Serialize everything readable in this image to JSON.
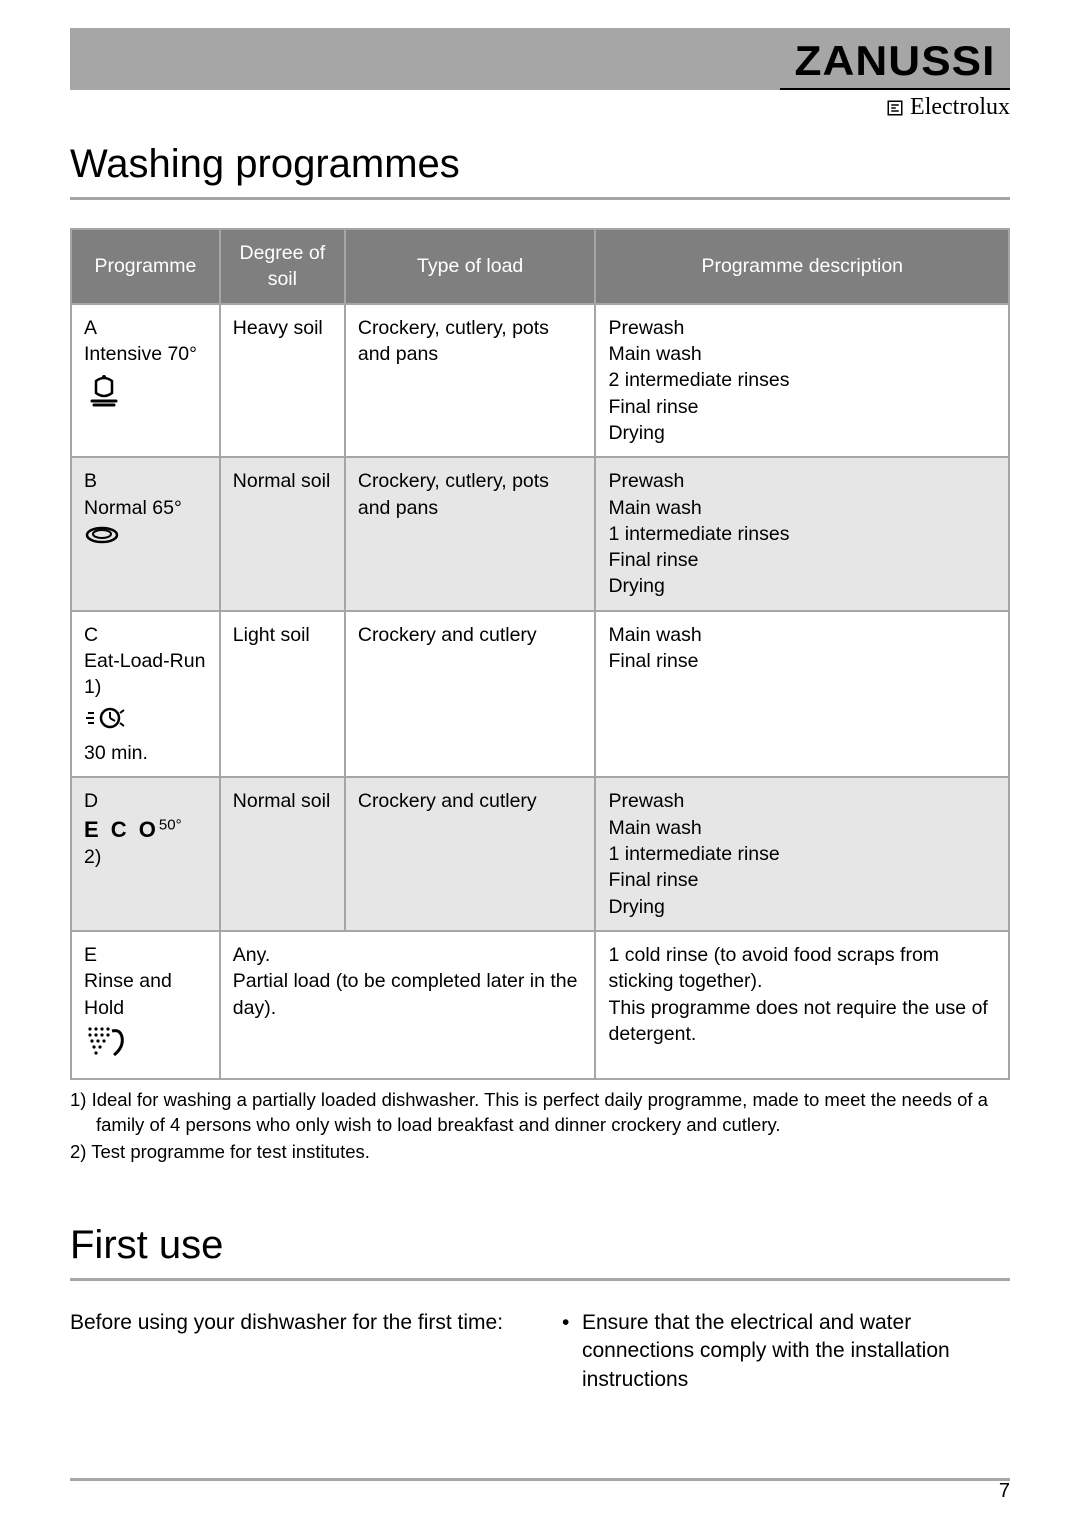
{
  "brand": {
    "primary": "ZANUSSI",
    "secondary": "Electrolux"
  },
  "sections": {
    "washing_title": "Washing programmes",
    "first_use_title": "First use"
  },
  "table": {
    "headers": {
      "programme": "Programme",
      "soil": "Degree of soil",
      "load": "Type of load",
      "desc": "Programme description"
    },
    "rows": [
      {
        "letter": "A",
        "name": "Intensive 70°",
        "sub": "",
        "soil": "Heavy soil",
        "load": "Crockery, cutlery, pots and pans",
        "desc": "Prewash\nMain wash\n2 intermediate rinses\nFinal rinse\nDrying"
      },
      {
        "letter": "B",
        "name": "Normal 65°",
        "sub": "",
        "soil": "Normal soil",
        "load": "Crockery, cutlery, pots and pans",
        "desc": "Prewash\nMain wash\n1 intermediate rinses\nFinal rinse\nDrying"
      },
      {
        "letter": "C",
        "name": "Eat-Load-Run",
        "sub_top": "1)",
        "sub_bottom": "30 min.",
        "soil": "Light soil",
        "load": "Crockery and cutlery",
        "desc": "Main wash\nFinal rinse"
      },
      {
        "letter": "D",
        "name_eco": "E C O",
        "name_eco_deg": "50°",
        "sub": "2)",
        "soil": "Normal soil",
        "load": "Crockery and cutlery",
        "desc": "Prewash\nMain wash\n1 intermediate rinse\nFinal rinse\nDrying"
      },
      {
        "letter": "E",
        "name": "Rinse and Hold",
        "sub": "",
        "soil_load": "Any.\nPartial load (to be completed later in the day).",
        "desc": "1 cold rinse (to avoid food scraps from sticking together).\nThis programme does not require the use of detergent."
      }
    ]
  },
  "footnotes": {
    "f1": "1) Ideal for washing a partially loaded dishwasher. This is perfect daily programme, made to meet the needs of a family of 4 persons who only wish to load breakfast and dinner crockery and cutlery.",
    "f2": "2) Test programme for test institutes."
  },
  "first_use": {
    "left": "Before using your dishwasher for the first time:",
    "right_bullet": "Ensure that the electrical and water connections comply with the installation instructions"
  },
  "page_number": "7",
  "colors": {
    "grey_bar": "#a6a6a6",
    "header_bg": "#7f7f7f",
    "alt_row": "#e6e6e6",
    "text": "#000000",
    "bg": "#ffffff"
  }
}
